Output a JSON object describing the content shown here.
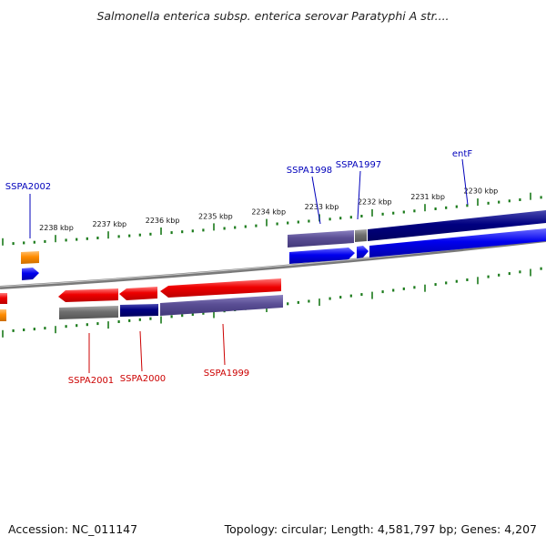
{
  "title": "Salmonella enterica subsp. enterica serovar Paratyphi A str....",
  "footer": {
    "accession": "Accession: NC_011147",
    "summary": "Topology: circular; Length: 4,581,797 bp; Genes: 4,207"
  },
  "colors": {
    "forward_gene": "#0000ee",
    "reverse_gene": "#ee0000",
    "tick": "#1a7a1a",
    "backbone": "#888888",
    "cds_dark": "#000080",
    "cds_slate": "#5a4e94",
    "cds_gray": "#6e6e6e",
    "orange_feature": "#ff8c00",
    "label_forward": "#0000bb",
    "label_reverse": "#cc0000"
  },
  "ticks": [
    {
      "label": "2238 kbp"
    },
    {
      "label": "2237 kbp"
    },
    {
      "label": "2236 kbp"
    },
    {
      "label": "2235 kbp"
    },
    {
      "label": "2234 kbp"
    },
    {
      "label": "2233 kbp"
    },
    {
      "label": "2232 kbp"
    },
    {
      "label": "2231 kbp"
    },
    {
      "label": "2230 kbp"
    }
  ],
  "genes": [
    {
      "name": "SSPA2002",
      "strand": "forward"
    },
    {
      "name": "SSPA1998",
      "strand": "forward"
    },
    {
      "name": "SSPA1997",
      "strand": "forward"
    },
    {
      "name": "entF",
      "strand": "forward"
    },
    {
      "name": "SSPA2001",
      "strand": "reverse"
    },
    {
      "name": "SSPA2000",
      "strand": "reverse"
    },
    {
      "name": "SSPA1999",
      "strand": "reverse"
    }
  ]
}
